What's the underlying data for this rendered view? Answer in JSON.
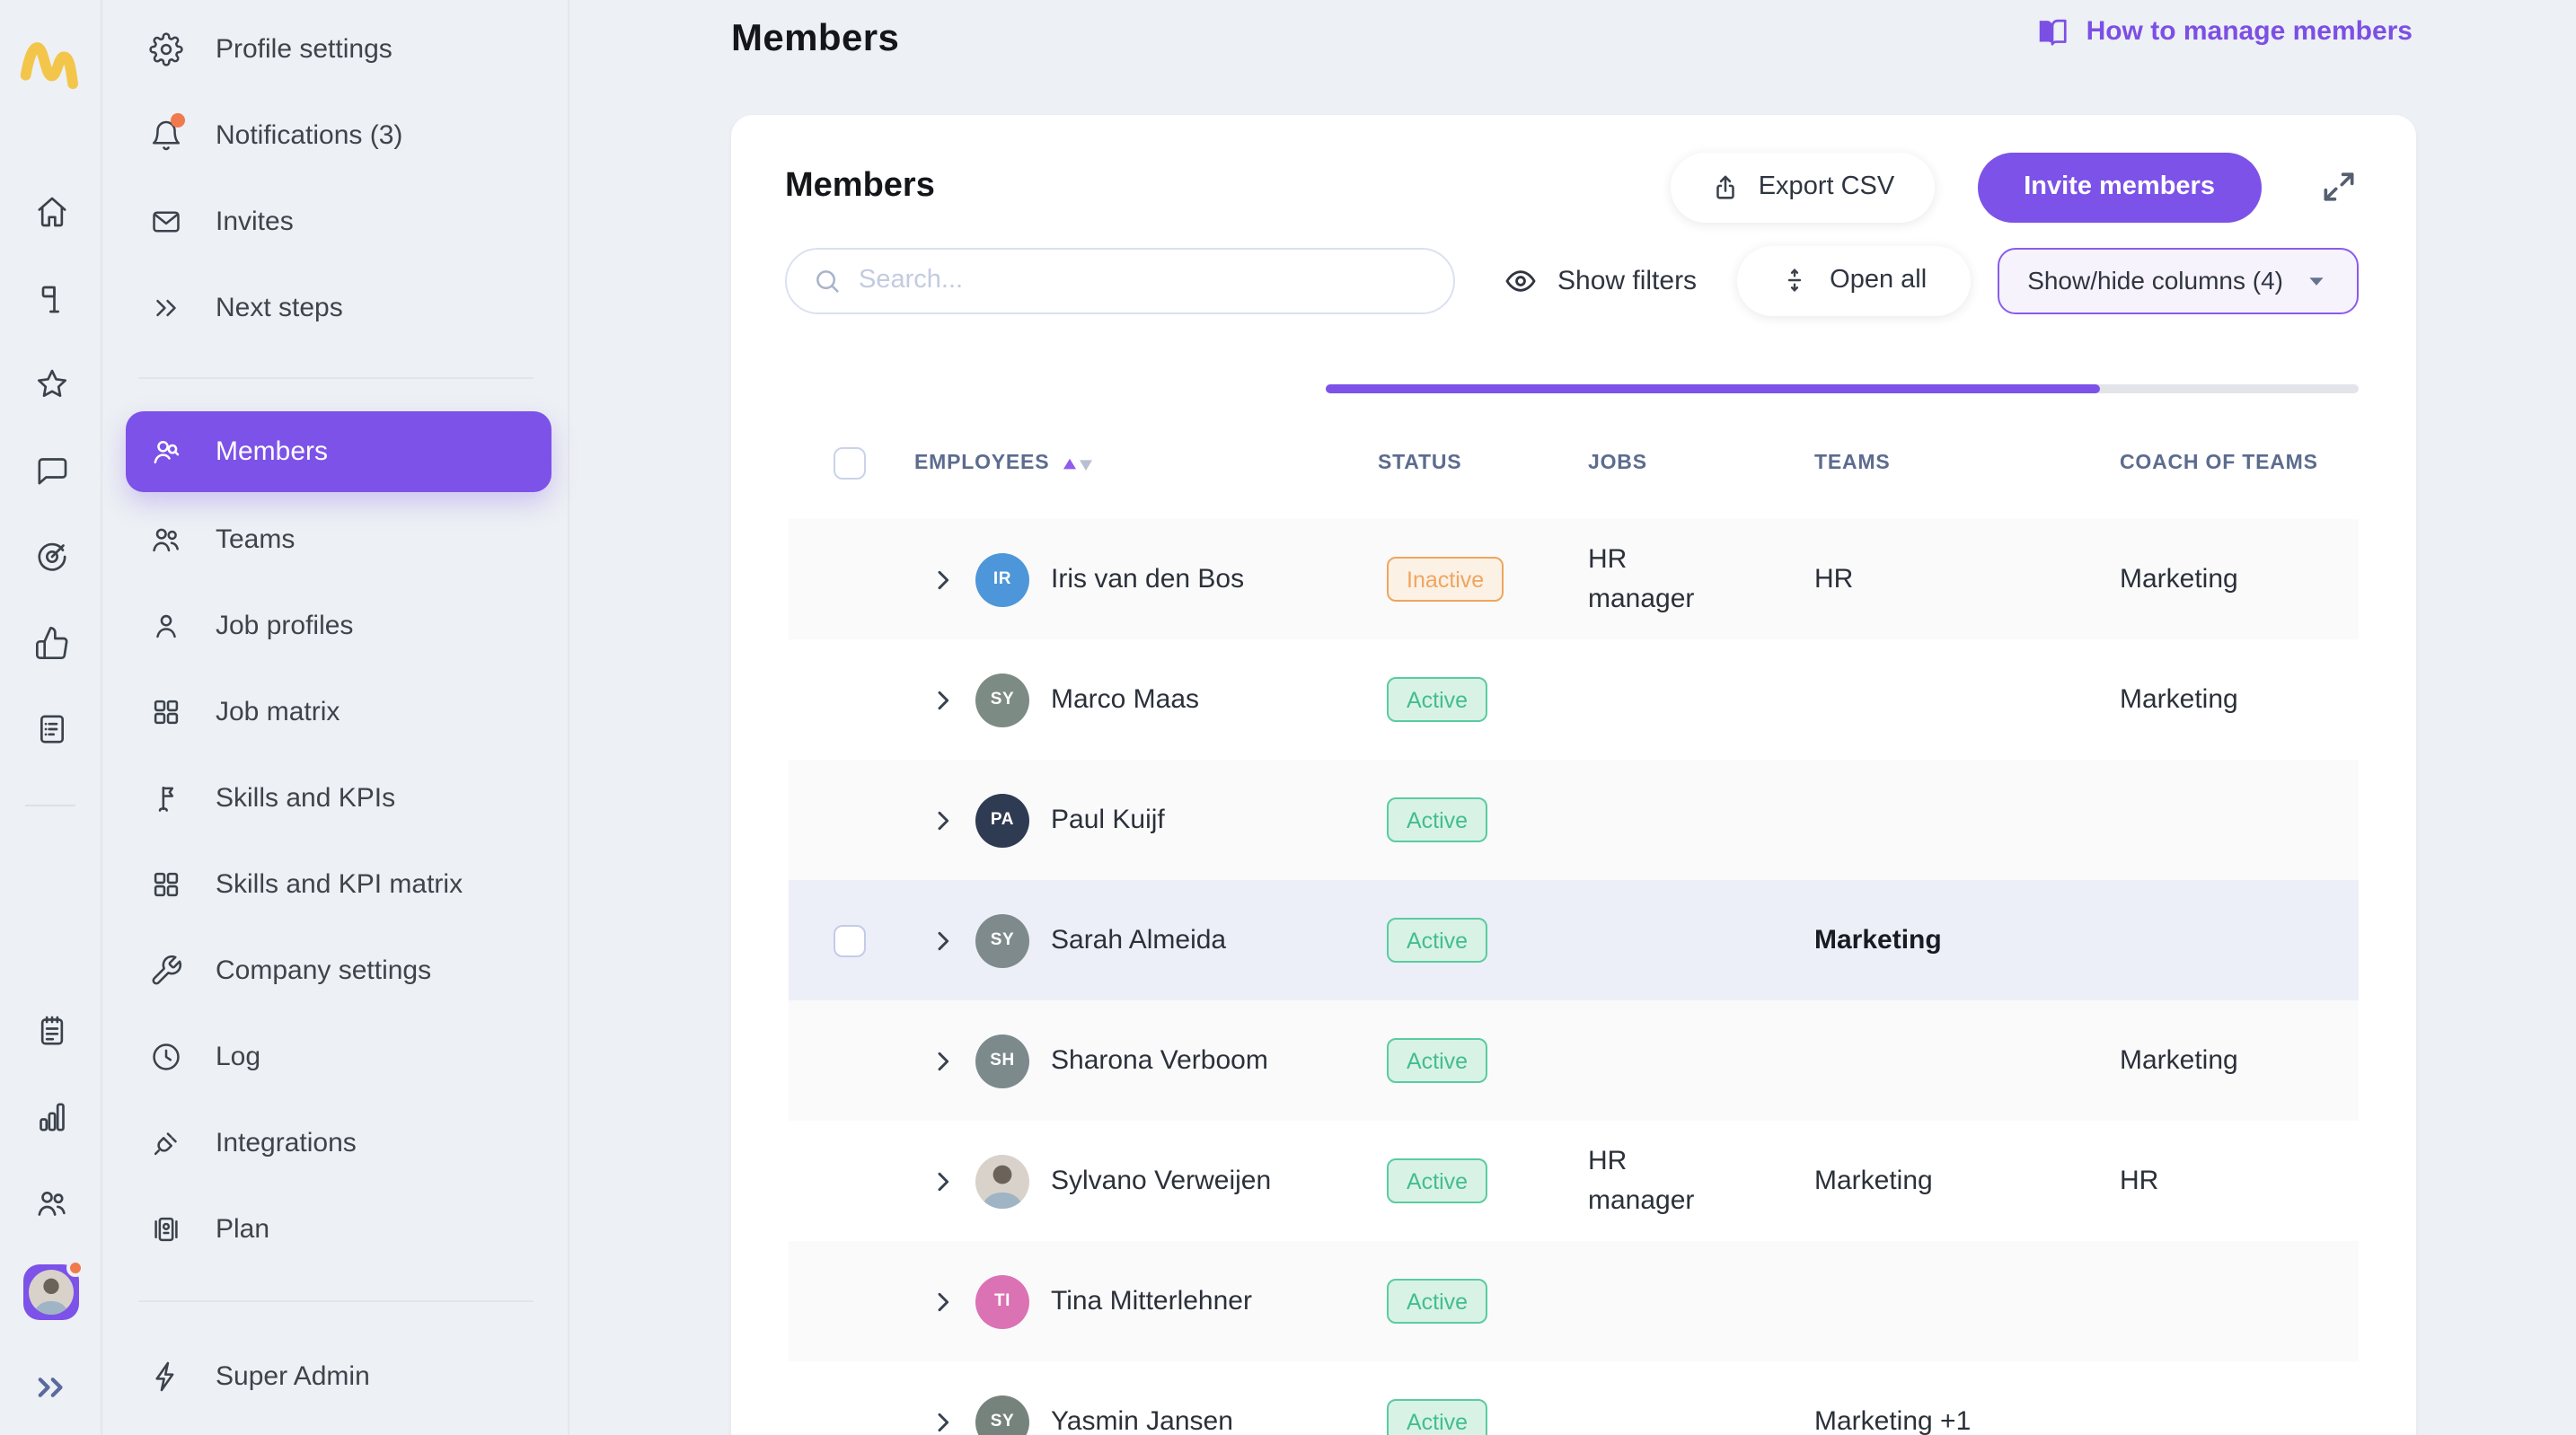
{
  "header": {
    "title": "Members",
    "help_label": "How to manage members"
  },
  "rail": {
    "top_icons": [
      {
        "icon": "home"
      },
      {
        "icon": "pin"
      },
      {
        "icon": "star"
      },
      {
        "icon": "chat"
      },
      {
        "icon": "target"
      },
      {
        "icon": "thumbs-up"
      },
      {
        "icon": "checklist"
      }
    ],
    "bottom_icons": [
      {
        "icon": "notepad"
      },
      {
        "icon": "bar-chart"
      },
      {
        "icon": "people"
      }
    ]
  },
  "sidebar": {
    "top_items": [
      {
        "icon": "gear",
        "label": "Profile settings"
      },
      {
        "icon": "bell",
        "label": "Notifications (3)",
        "dot": true
      },
      {
        "icon": "mail",
        "label": "Invites"
      },
      {
        "icon": "chevrons-right",
        "label": "Next steps"
      }
    ],
    "main_items": [
      {
        "icon": "members",
        "label": "Members",
        "active": true
      },
      {
        "icon": "people",
        "label": "Teams"
      },
      {
        "icon": "person",
        "label": "Job profiles"
      },
      {
        "icon": "grid",
        "label": "Job matrix"
      },
      {
        "icon": "flag",
        "label": "Skills and KPIs"
      },
      {
        "icon": "grid",
        "label": "Skills and KPI matrix"
      },
      {
        "icon": "wrench",
        "label": "Company settings"
      },
      {
        "icon": "clock",
        "label": "Log"
      },
      {
        "icon": "plug",
        "label": "Integrations"
      },
      {
        "icon": "plan",
        "label": "Plan"
      }
    ],
    "bottom_items": [
      {
        "icon": "bolt",
        "label": "Super Admin"
      }
    ]
  },
  "card": {
    "title": "Members",
    "export_label": "Export CSV",
    "invite_label": "Invite members",
    "search_placeholder": "Search...",
    "show_filters_label": "Show filters",
    "open_all_label": "Open all",
    "columns_toggle_label": "Show/hide columns (4)",
    "progress_percent": 75
  },
  "table": {
    "columns": [
      {
        "label": "EMPLOYEES",
        "sortable": true
      },
      {
        "label": "STATUS"
      },
      {
        "label": "JOBS"
      },
      {
        "label": "TEAMS"
      },
      {
        "label": "COACH OF TEAMS"
      }
    ],
    "rows": [
      {
        "initials": "IR",
        "avatar_color": "#4D96D9",
        "name": "Iris van den Bos",
        "status": "Inactive",
        "jobs": "HR manager",
        "teams": "HR",
        "coach": "Marketing"
      },
      {
        "initials": "SY",
        "avatar_color": "#7D8B85",
        "name": "Marco Maas",
        "status": "Active",
        "jobs": "",
        "teams": "",
        "coach": "Marketing"
      },
      {
        "initials": "PA",
        "avatar_color": "#2F3B52",
        "name": "Paul Kuijf",
        "status": "Active",
        "jobs": "",
        "teams": "",
        "coach": ""
      },
      {
        "initials": "SY",
        "avatar_color": "#7F8A8C",
        "name": "Sarah Almeida",
        "status": "Active",
        "jobs": "",
        "teams": "Marketing",
        "coach": "",
        "selected": true,
        "teams_bold": true
      },
      {
        "initials": "SH",
        "avatar_color": "#7C8A8C",
        "name": "Sharona Verboom",
        "status": "Active",
        "jobs": "",
        "teams": "",
        "coach": "Marketing"
      },
      {
        "photo": true,
        "name": "Sylvano Verweijen",
        "status": "Active",
        "jobs": "HR manager",
        "teams": "Marketing",
        "coach": "HR"
      },
      {
        "initials": "TI",
        "avatar_color": "#DB72B4",
        "name": "Tina Mitterlehner",
        "status": "Active",
        "jobs": "",
        "teams": "",
        "coach": ""
      },
      {
        "initials": "SY",
        "avatar_color": "#76837D",
        "name": "Yasmin Jansen",
        "status": "Active",
        "jobs": "",
        "teams": "Marketing +1",
        "coach": ""
      }
    ]
  },
  "colors": {
    "accent": "#7C52E8",
    "logo": "#F3C64B",
    "notification_dot": "#F07A4D",
    "active_badge": "#41BE8F",
    "inactive_badge": "#F0A55F",
    "selected_row_bg": "#EDEFF8",
    "column_header_text": "#5C6C8F"
  }
}
